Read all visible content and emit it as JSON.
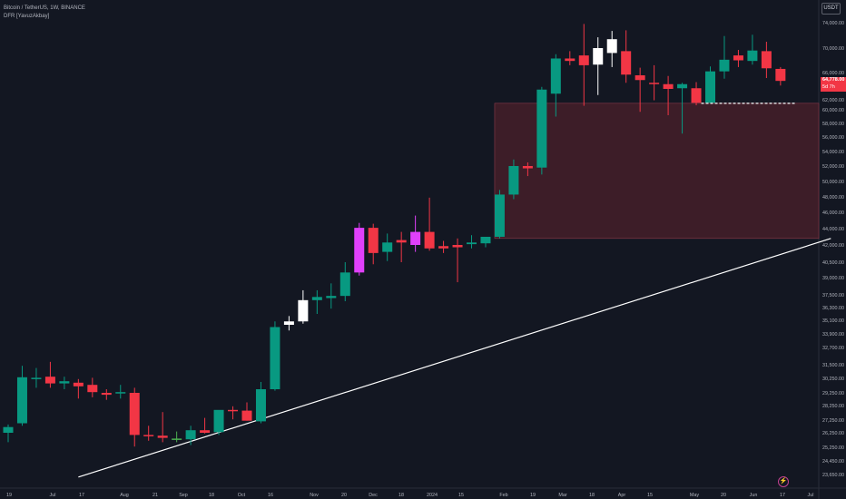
{
  "legend": {
    "symbol_line": "Bitcoin / TetherUS, 1W, BINANCE",
    "indicator_line": "DFR [YavuzAkbay]"
  },
  "currency_button": "USDT",
  "last_price": {
    "value": "64,778.00",
    "countdown": "5d 7h"
  },
  "price_axis": [
    "74,000.00",
    "70,000.00",
    "66,000.00",
    "62,000.00",
    "60,000.00",
    "58,000.00",
    "56,000.00",
    "54,000.00",
    "52,000.00",
    "50,000.00",
    "48,000.00",
    "46,000.00",
    "44,000.00",
    "42,000.00",
    "40,500.00",
    "39,000.00",
    "37,500.00",
    "36,300.00",
    "35,100.00",
    "33,900.00",
    "32,700.00",
    "31,500.00",
    "30,250.00",
    "29,250.00",
    "28,250.00",
    "27,250.00",
    "26,250.00",
    "25,250.00",
    "24,450.00",
    "23,650.00"
  ],
  "time_axis": [
    "19",
    "Jul",
    "17",
    "Aug",
    "21",
    "Sep",
    "18",
    "Oct",
    "16",
    "Nov",
    "20",
    "Dec",
    "18",
    "2024",
    "15",
    "Feb",
    "19",
    "Mar",
    "18",
    "Apr",
    "15",
    "May",
    "20",
    "Jun",
    "17",
    "Jul"
  ],
  "colors": {
    "background": "#131722",
    "up": "#089981",
    "down": "#f23645",
    "white_candle": "#ffffff",
    "magenta_candle": "#e040fb",
    "green_doji": "#4caf50",
    "zone_fill": "#3d1d28",
    "zone_border": "#8c3a4a",
    "trendline": "#ffffff"
  },
  "logo_icon": "tradingview-logo-icon",
  "chart_data": {
    "type": "candlestick",
    "timeframe": "1W",
    "candles": [
      {
        "o": 26250,
        "h": 26900,
        "l": 25600,
        "c": 26700,
        "col": "up"
      },
      {
        "o": 27000,
        "h": 31400,
        "l": 26800,
        "c": 30350,
        "col": "up"
      },
      {
        "o": 30200,
        "h": 31200,
        "l": 29600,
        "c": 30300,
        "col": "up"
      },
      {
        "o": 30400,
        "h": 31700,
        "l": 29600,
        "c": 29900,
        "col": "down"
      },
      {
        "o": 29900,
        "h": 30400,
        "l": 29500,
        "c": 30050,
        "col": "up"
      },
      {
        "o": 29950,
        "h": 30200,
        "l": 28800,
        "c": 29700,
        "col": "down"
      },
      {
        "o": 29800,
        "h": 30300,
        "l": 28900,
        "c": 29300,
        "col": "down"
      },
      {
        "o": 29250,
        "h": 29500,
        "l": 28700,
        "c": 29100,
        "col": "down"
      },
      {
        "o": 29200,
        "h": 29800,
        "l": 28800,
        "c": 29300,
        "col": "up"
      },
      {
        "o": 29250,
        "h": 29600,
        "l": 25300,
        "c": 26100,
        "col": "down"
      },
      {
        "o": 26100,
        "h": 26800,
        "l": 25700,
        "c": 26050,
        "col": "down"
      },
      {
        "o": 26050,
        "h": 27800,
        "l": 25600,
        "c": 25900,
        "col": "down"
      },
      {
        "o": 25850,
        "h": 26350,
        "l": 25600,
        "c": 25800,
        "col": "green_doji"
      },
      {
        "o": 25800,
        "h": 26800,
        "l": 25400,
        "c": 26450,
        "col": "up"
      },
      {
        "o": 26450,
        "h": 27400,
        "l": 26200,
        "c": 26250,
        "col": "down"
      },
      {
        "o": 26300,
        "h": 27500,
        "l": 26100,
        "c": 27950,
        "col": "up"
      },
      {
        "o": 27950,
        "h": 28200,
        "l": 27300,
        "c": 27900,
        "col": "down"
      },
      {
        "o": 27900,
        "h": 28500,
        "l": 27200,
        "c": 27200,
        "col": "down"
      },
      {
        "o": 27150,
        "h": 30000,
        "l": 27000,
        "c": 29500,
        "col": "up"
      },
      {
        "o": 29500,
        "h": 35000,
        "l": 29400,
        "c": 34500,
        "col": "up"
      },
      {
        "o": 34700,
        "h": 35500,
        "l": 34200,
        "c": 35000,
        "col": "white"
      },
      {
        "o": 35000,
        "h": 37900,
        "l": 34800,
        "c": 37000,
        "col": "white"
      },
      {
        "o": 37000,
        "h": 37900,
        "l": 35700,
        "c": 37300,
        "col": "up"
      },
      {
        "o": 37200,
        "h": 38500,
        "l": 36200,
        "c": 37400,
        "col": "up"
      },
      {
        "o": 37400,
        "h": 40500,
        "l": 36900,
        "c": 39500,
        "col": "up"
      },
      {
        "o": 39500,
        "h": 44700,
        "l": 39200,
        "c": 44100,
        "col": "magenta"
      },
      {
        "o": 44100,
        "h": 44600,
        "l": 40300,
        "c": 41300,
        "col": "down"
      },
      {
        "o": 41400,
        "h": 43400,
        "l": 40600,
        "c": 42300,
        "col": "up"
      },
      {
        "o": 42300,
        "h": 43600,
        "l": 40500,
        "c": 42600,
        "col": "down"
      },
      {
        "o": 42000,
        "h": 45600,
        "l": 41400,
        "c": 43600,
        "col": "magenta"
      },
      {
        "o": 43600,
        "h": 47900,
        "l": 41500,
        "c": 41700,
        "col": "down"
      },
      {
        "o": 41700,
        "h": 42500,
        "l": 41300,
        "c": 41900,
        "col": "down"
      },
      {
        "o": 41800,
        "h": 42800,
        "l": 38600,
        "c": 42000,
        "col": "down"
      },
      {
        "o": 42100,
        "h": 43200,
        "l": 41700,
        "c": 42300,
        "col": "up"
      },
      {
        "o": 42200,
        "h": 43000,
        "l": 41800,
        "c": 43000,
        "col": "up"
      },
      {
        "o": 43000,
        "h": 48900,
        "l": 42800,
        "c": 48300,
        "col": "up"
      },
      {
        "o": 48300,
        "h": 52900,
        "l": 47700,
        "c": 52000,
        "col": "up"
      },
      {
        "o": 52000,
        "h": 52500,
        "l": 50700,
        "c": 51700,
        "col": "down"
      },
      {
        "o": 51800,
        "h": 63900,
        "l": 50900,
        "c": 63500,
        "col": "up"
      },
      {
        "o": 62900,
        "h": 69000,
        "l": 59000,
        "c": 68300,
        "col": "up"
      },
      {
        "o": 68300,
        "h": 69500,
        "l": 67200,
        "c": 67900,
        "col": "down"
      },
      {
        "o": 68800,
        "h": 73800,
        "l": 60800,
        "c": 67200,
        "col": "down"
      },
      {
        "o": 67300,
        "h": 71700,
        "l": 62700,
        "c": 70000,
        "col": "white"
      },
      {
        "o": 69200,
        "h": 72700,
        "l": 66900,
        "c": 71400,
        "col": "white"
      },
      {
        "o": 69500,
        "h": 72800,
        "l": 64500,
        "c": 65700,
        "col": "down"
      },
      {
        "o": 65600,
        "h": 66800,
        "l": 59700,
        "c": 64900,
        "col": "down"
      },
      {
        "o": 64500,
        "h": 67200,
        "l": 61900,
        "c": 64300,
        "col": "down"
      },
      {
        "o": 64300,
        "h": 65500,
        "l": 59200,
        "c": 63600,
        "col": "down"
      },
      {
        "o": 64300,
        "h": 64500,
        "l": 56500,
        "c": 63700,
        "col": "up"
      },
      {
        "o": 63700,
        "h": 64600,
        "l": 60900,
        "c": 61400,
        "col": "down"
      },
      {
        "o": 61400,
        "h": 67000,
        "l": 61300,
        "c": 66200,
        "col": "up"
      },
      {
        "o": 66200,
        "h": 71900,
        "l": 65100,
        "c": 68100,
        "col": "up"
      },
      {
        "o": 68800,
        "h": 69700,
        "l": 66900,
        "c": 68000,
        "col": "down"
      },
      {
        "o": 67900,
        "h": 72100,
        "l": 67300,
        "c": 69600,
        "col": "up"
      },
      {
        "o": 69500,
        "h": 71000,
        "l": 65200,
        "c": 66700,
        "col": "down"
      },
      {
        "o": 66600,
        "h": 66900,
        "l": 64100,
        "c": 64778,
        "col": "down"
      }
    ],
    "zone": {
      "top": 61300,
      "bottom": 42800,
      "start_index": 35
    },
    "support_level": {
      "price": 61300,
      "start_index": 49,
      "style": "dashed"
    },
    "trendline": {
      "start_index": 5,
      "start_price": 23500,
      "end_index": 56,
      "end_price": 42800
    }
  }
}
